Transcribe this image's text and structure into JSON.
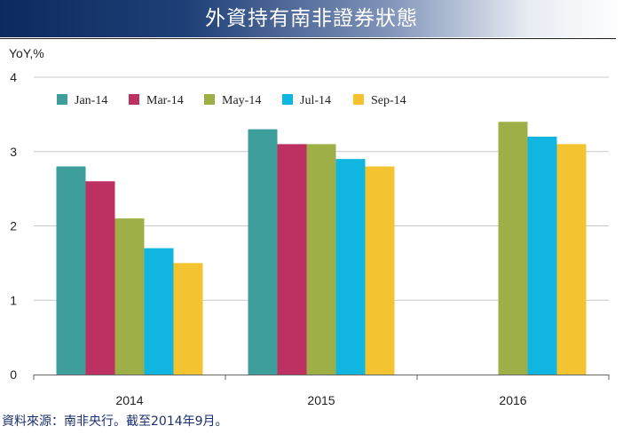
{
  "header": {
    "title": "外資持有南非證券狀態"
  },
  "footer": {
    "source": "資料來源：南非央行。截至2014年9月。"
  },
  "chart_data": {
    "type": "bar",
    "ylabel": "YoY,%",
    "ylim": [
      0,
      4
    ],
    "yticks": [
      0,
      1,
      2,
      3,
      4
    ],
    "categories": [
      "2014",
      "2015",
      "2016"
    ],
    "grid": true,
    "legend_position": "top-left",
    "series": [
      {
        "name": "Jan-14",
        "color": "#3e9e9b",
        "values": [
          2.8,
          3.3,
          null
        ]
      },
      {
        "name": "Mar-14",
        "color": "#bd3062",
        "values": [
          2.6,
          3.1,
          null
        ]
      },
      {
        "name": "May-14",
        "color": "#9faf48",
        "values": [
          2.1,
          3.1,
          3.4
        ]
      },
      {
        "name": "Jul-14",
        "color": "#10b6e0",
        "values": [
          1.7,
          2.9,
          3.2
        ]
      },
      {
        "name": "Sep-14",
        "color": "#f4c430",
        "values": [
          1.5,
          2.8,
          3.1
        ]
      }
    ]
  }
}
